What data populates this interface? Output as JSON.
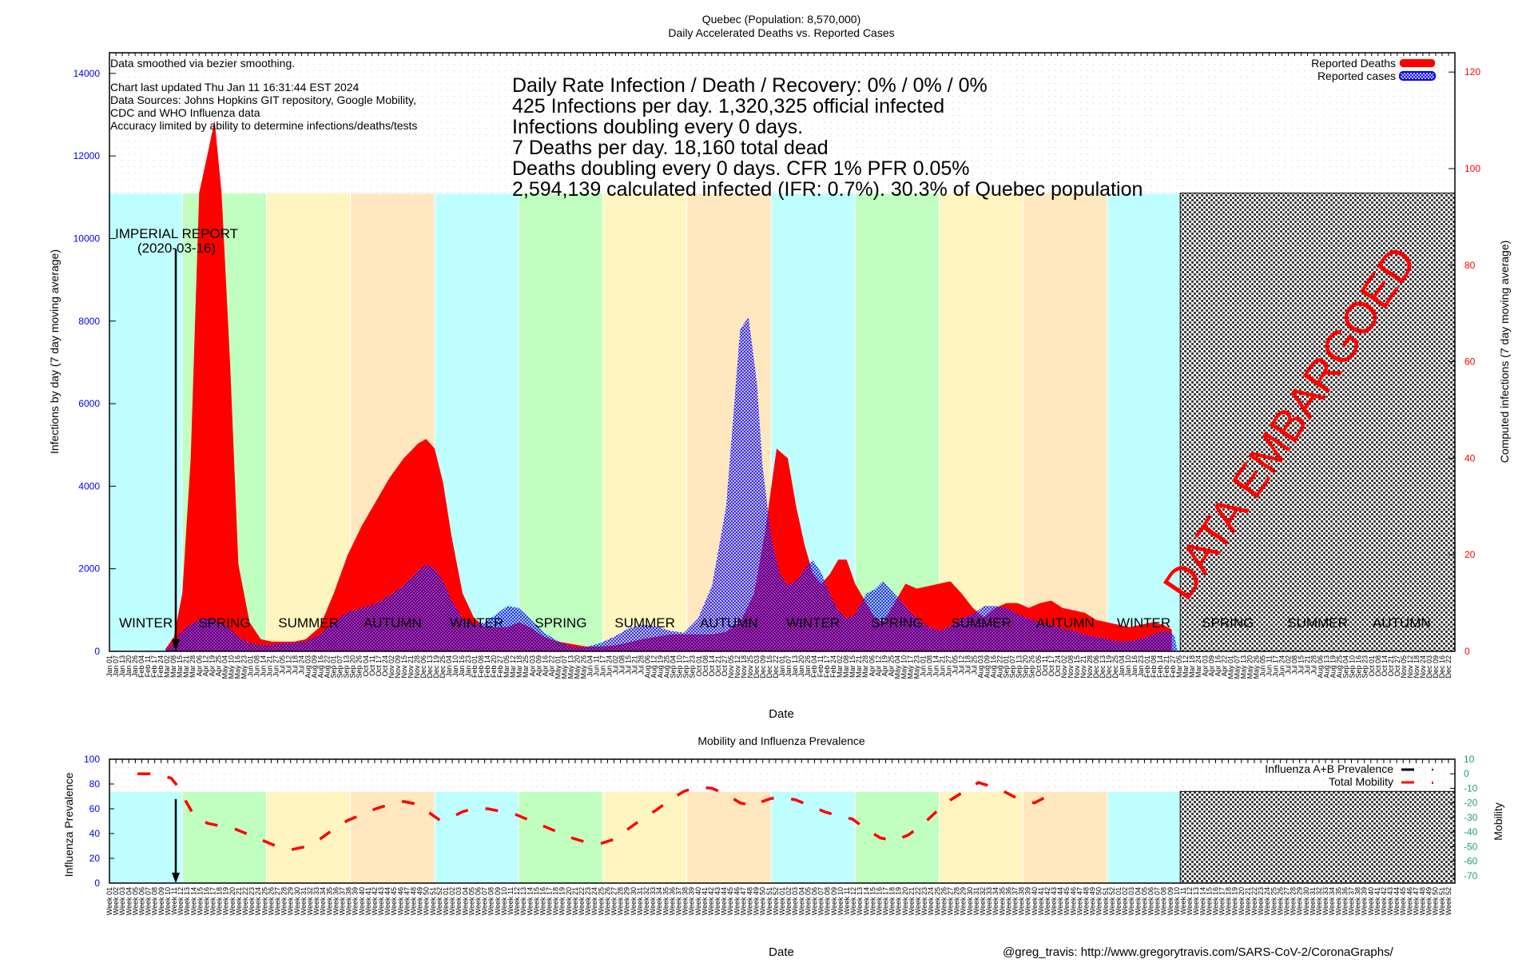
{
  "chart_data": [
    {
      "type": "area",
      "title": "Quebec (Population: 8,570,000)",
      "subtitle": "Daily Accelerated Deaths vs. Reported Cases",
      "xlabel": "Date",
      "ylabel": "Infections by day (7 day moving average)",
      "y2label": "Computed infections (7 day moving average)",
      "ylim": [
        0,
        14500
      ],
      "y2lim": [
        0,
        124
      ],
      "yticks": [
        0,
        2000,
        4000,
        6000,
        8000,
        10000,
        12000,
        14000
      ],
      "y2ticks": [
        0,
        20,
        40,
        60,
        80,
        100,
        120
      ],
      "xrange_months": [
        "2020-01",
        "2024-12"
      ],
      "grid": true,
      "legend_position": "top-right",
      "legend": [
        {
          "label": "Reported Deaths",
          "color": "#ff0000",
          "style": "solid"
        },
        {
          "label": "Reported cases",
          "color": "#0000ff",
          "style": "crosshatch"
        }
      ],
      "notes": [
        "Data smoothed via bezier smoothing.",
        "",
        "Chart last updated Thu Jan 11 16:31:44 EST 2024",
        "Data Sources: Johns Hopkins GIT repository, Google Mobility,",
        "CDC and WHO Influenza data",
        "Accuracy limited by ability to determine infections/deaths/tests"
      ],
      "stats": [
        "Daily Rate Infection / Death / Recovery: 0% / 0% / 0%",
        "425 Infections per day.  1,320,325 official infected",
        "Infections doubling every 0 days.",
        "7 Deaths per day.  18,160 total dead",
        "Deaths doubling every 0 days.  CFR 1%  PFR 0.05%",
        "2,594,139 calculated infected (IFR: 0.7%).  30.3% of Quebec population"
      ],
      "annotation": {
        "label": "IMPERIAL REPORT",
        "date": "(2020-03-16)",
        "x_month": 2.5
      },
      "embargo_label": "DATA EMBARGOED",
      "embargo_from_month": 38.2,
      "season_band_top": 11100,
      "seasons": [
        {
          "name": "WINTER",
          "start": 0,
          "end": 2.6,
          "color": "#c0ffff"
        },
        {
          "name": "SPRING",
          "start": 2.6,
          "end": 5.6,
          "color": "#c0ffc0"
        },
        {
          "name": "SUMMER",
          "start": 5.6,
          "end": 8.6,
          "color": "#fff5c0"
        },
        {
          "name": "AUTUMN",
          "start": 8.6,
          "end": 11.6,
          "color": "#ffe8c0"
        },
        {
          "name": "WINTER",
          "start": 11.6,
          "end": 14.6,
          "color": "#c0ffff"
        },
        {
          "name": "SPRING",
          "start": 14.6,
          "end": 17.6,
          "color": "#c0ffc0"
        },
        {
          "name": "SUMMER",
          "start": 17.6,
          "end": 20.6,
          "color": "#fff5c0"
        },
        {
          "name": "AUTUMN",
          "start": 20.6,
          "end": 23.6,
          "color": "#ffe8c0"
        },
        {
          "name": "WINTER",
          "start": 23.6,
          "end": 26.6,
          "color": "#c0ffff"
        },
        {
          "name": "SPRING",
          "start": 26.6,
          "end": 29.6,
          "color": "#c0ffc0"
        },
        {
          "name": "SUMMER",
          "start": 29.6,
          "end": 32.6,
          "color": "#fff5c0"
        },
        {
          "name": "AUTUMN",
          "start": 32.6,
          "end": 35.6,
          "color": "#ffe8c0"
        },
        {
          "name": "WINTER",
          "start": 35.6,
          "end": 38.2,
          "color": "#c0ffff"
        },
        {
          "name": "SPRING",
          "start": 38.2,
          "end": 41.6,
          "color": null
        },
        {
          "name": "SUMMER",
          "start": 41.6,
          "end": 44.6,
          "color": null
        },
        {
          "name": "AUTUMN",
          "start": 44.6,
          "end": 47.6,
          "color": null
        }
      ],
      "series": [
        {
          "name": "Reported Deaths",
          "axis": "y2",
          "color": "#ff0000",
          "x_month": [
            2.0,
            2.3,
            2.6,
            2.9,
            3.2,
            3.5,
            3.75,
            4.0,
            4.3,
            4.6,
            5.0,
            5.4,
            5.8,
            6.2,
            6.6,
            7.0,
            7.5,
            8.0,
            8.5,
            9.0,
            9.5,
            10.0,
            10.5,
            11.0,
            11.3,
            11.6,
            11.9,
            12.2,
            12.6,
            13.0,
            13.4,
            13.8,
            14.2,
            14.6,
            15.0,
            15.5,
            16.0,
            16.5,
            17.0,
            17.5,
            18.0,
            18.5,
            19.0,
            19.5,
            20.0,
            20.5,
            21.0,
            21.5,
            22.0,
            22.5,
            23.0,
            23.4,
            23.8,
            24.2,
            24.5,
            24.8,
            25.1,
            25.4,
            25.7,
            26.0,
            26.3,
            26.6,
            27.0,
            27.3,
            27.6,
            28.0,
            28.4,
            28.8,
            29.2,
            29.6,
            30.0,
            30.4,
            30.8,
            31.2,
            31.6,
            32.0,
            32.4,
            32.8,
            33.2,
            33.6,
            34.0,
            34.4,
            34.8,
            35.2,
            35.6,
            36.0,
            36.4,
            36.8,
            37.2,
            37.6,
            37.9
          ],
          "values": [
            0.5,
            3,
            12,
            40,
            95,
            103,
            110,
            95,
            60,
            18,
            6,
            2.5,
            2,
            2,
            2,
            2.5,
            5,
            12,
            20,
            26,
            31,
            36,
            40,
            43,
            44,
            42,
            35,
            24,
            12,
            7,
            5,
            5,
            5,
            6,
            5,
            3,
            2,
            1.5,
            1,
            1,
            1.2,
            1.8,
            2.5,
            3,
            3.5,
            3.5,
            3.5,
            3.5,
            4,
            6,
            12,
            25,
            42,
            40,
            30,
            22,
            16,
            14,
            16,
            19,
            19,
            14,
            10,
            7,
            6,
            10,
            14,
            13,
            13.5,
            14,
            14.5,
            12,
            9,
            7,
            9,
            10,
            10,
            9,
            10,
            10.5,
            9,
            8.5,
            8,
            6.5,
            6,
            5.5,
            5,
            5.5,
            6,
            5.5,
            4.5
          ]
        },
        {
          "name": "Reported cases",
          "axis": "y",
          "color": "#0000ff",
          "x_month": [
            2.0,
            2.3,
            2.6,
            3.0,
            3.4,
            3.8,
            4.2,
            4.6,
            5.0,
            5.4,
            5.8,
            6.2,
            6.6,
            7.0,
            7.5,
            8.0,
            8.5,
            9.0,
            9.5,
            10.0,
            10.5,
            11.0,
            11.3,
            11.6,
            11.9,
            12.2,
            12.6,
            13.0,
            13.4,
            13.8,
            14.2,
            14.6,
            15.0,
            15.5,
            16.0,
            16.5,
            17.0,
            17.5,
            18.0,
            18.5,
            19.0,
            19.5,
            20.0,
            20.5,
            21.0,
            21.5,
            22.0,
            22.5,
            22.8,
            23.1,
            23.3,
            23.6,
            23.9,
            24.2,
            24.5,
            24.8,
            25.1,
            25.4,
            25.7,
            26.0,
            26.3,
            26.6,
            27.0,
            27.3,
            27.6,
            28.0,
            28.4,
            28.8,
            29.2,
            29.6,
            30.0,
            30.4,
            30.8,
            31.2,
            31.6,
            32.0,
            32.4,
            32.8,
            33.2,
            33.6,
            34.0,
            34.4,
            34.8,
            35.2,
            35.6,
            36.0,
            36.4,
            36.8,
            37.2,
            37.6,
            37.9,
            38.0,
            38.1
          ],
          "values": [
            50,
            200,
            500,
            700,
            800,
            750,
            600,
            350,
            200,
            150,
            150,
            200,
            200,
            250,
            400,
            700,
            950,
            1050,
            1150,
            1350,
            1600,
            1950,
            2100,
            2000,
            1700,
            1250,
            800,
            650,
            700,
            900,
            1100,
            1050,
            800,
            450,
            250,
            100,
            100,
            200,
            350,
            550,
            650,
            600,
            500,
            450,
            800,
            1600,
            3500,
            7800,
            8100,
            6500,
            4500,
            2800,
            1900,
            1600,
            1700,
            2000,
            2200,
            1900,
            1400,
            1000,
            800,
            900,
            1400,
            1500,
            1700,
            1400,
            1100,
            800,
            600,
            500,
            600,
            800,
            900,
            1100,
            1100,
            1050,
            900,
            800,
            700,
            650,
            550,
            500,
            400,
            350,
            300,
            250,
            250,
            300,
            400,
            500,
            450,
            350,
            0
          ]
        }
      ]
    },
    {
      "type": "line",
      "title": "Mobility and Influenza Prevalence",
      "xlabel": "Date",
      "ylabel": "Influenza Prevalence",
      "y2label": "Mobility",
      "ylim": [
        0,
        100
      ],
      "y2lim": [
        -75,
        10
      ],
      "yticks": [
        0,
        20,
        40,
        60,
        80,
        100
      ],
      "y2ticks": [
        10,
        0,
        -10,
        -20,
        -30,
        -40,
        -50,
        -60,
        -70
      ],
      "legend_position": "top-right",
      "legend": [
        {
          "label": "Influenza A+B Prevalence",
          "color": "#000000"
        },
        {
          "label": "Total Mobility",
          "color": "#ff0000"
        }
      ],
      "x_tick_format": "Week NN",
      "embargo_from_month": 38.2,
      "season_band_top": 74,
      "series": [
        {
          "name": "Total Mobility",
          "axis": "y2",
          "color": "#ff0000",
          "style": "dashed",
          "x_month": [
            1.0,
            1.6,
            2.2,
            2.5,
            2.7,
            3.0,
            3.5,
            4.0,
            4.5,
            5.0,
            5.5,
            6.0,
            6.5,
            7.0,
            7.5,
            8.0,
            8.5,
            9.0,
            9.5,
            10.0,
            10.5,
            11.0,
            11.5,
            11.8,
            12.2,
            12.6,
            13.0,
            13.5,
            14.0,
            14.5,
            15.0,
            15.5,
            16.0,
            16.5,
            17.0,
            17.5,
            18.0,
            18.5,
            19.0,
            19.5,
            20.0,
            20.5,
            21.0,
            21.5,
            22.0,
            22.5,
            23.0,
            23.3,
            23.6,
            24.0,
            24.5,
            25.0,
            25.5,
            26.0,
            26.5,
            27.0,
            27.5,
            28.0,
            28.5,
            29.0,
            29.5,
            30.0,
            30.5,
            31.0,
            31.5,
            32.0,
            32.5,
            33.0,
            33.5
          ],
          "values": [
            0,
            0,
            -3,
            -10,
            -18,
            -28,
            -34,
            -36,
            -38,
            -42,
            -46,
            -50,
            -52,
            -50,
            -45,
            -38,
            -32,
            -28,
            -24,
            -21,
            -19,
            -21,
            -28,
            -32,
            -30,
            -26,
            -24,
            -24,
            -26,
            -28,
            -32,
            -36,
            -40,
            -44,
            -47,
            -48,
            -45,
            -38,
            -31,
            -25,
            -18,
            -12,
            -9,
            -10,
            -14,
            -20,
            -22,
            -19,
            -17,
            -16,
            -18,
            -22,
            -26,
            -29,
            -31,
            -38,
            -44,
            -46,
            -42,
            -35,
            -26,
            -18,
            -12,
            -6,
            -9,
            -13,
            -18,
            -20,
            -15
          ]
        },
        {
          "name": "Influenza A+B Prevalence",
          "axis": "y",
          "color": "#000000",
          "style": "solid",
          "x_month": [],
          "values": []
        }
      ]
    }
  ],
  "footer": {
    "credit": "@greg_travis: http://www.gregorytravis.com/SARS-CoV-2/CoronaGraphs/"
  }
}
